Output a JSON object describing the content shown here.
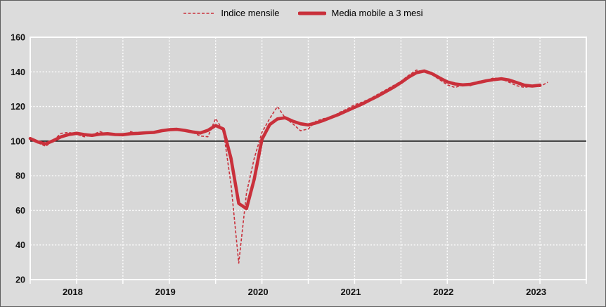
{
  "legend": {
    "series1_label": "Indice mensile",
    "series2_label": "Media mobile a 3 mesi"
  },
  "colors": {
    "line_red": "#c9303b",
    "plot_bg": "#d8d8d8",
    "outer_bg": "#dcdcdc",
    "gridline": "#ffffff",
    "baseline": "#000000",
    "text": "#111111"
  },
  "chart_data": {
    "type": "line",
    "title": "",
    "xlabel": "",
    "ylabel": "",
    "x_start": "2018-01",
    "x_total_months": 72,
    "x_tick_labels": [
      "2018",
      "2019",
      "2020",
      "2021",
      "2022",
      "2023"
    ],
    "y_ticks": [
      20,
      40,
      60,
      80,
      100,
      120,
      140,
      160
    ],
    "ylim": [
      20,
      160
    ],
    "baseline_value": 100,
    "grid": "on",
    "gridline_interval_months": 6,
    "legend_position": "top-center",
    "series": [
      {
        "name": "Indice mensile",
        "style": "dashed",
        "values": [
          101.5,
          99.0,
          97.0,
          100.5,
          104.5,
          105.0,
          104.0,
          102.5,
          103.5,
          105.5,
          104.0,
          103.5,
          103.0,
          105.5,
          104.0,
          105.0,
          105.5,
          106.5,
          107.0,
          106.5,
          106.0,
          105.0,
          103.0,
          102.5,
          113.0,
          106.0,
          75.0,
          29.5,
          70.0,
          90.0,
          105.0,
          113.0,
          120.0,
          113.5,
          110.0,
          106.0,
          107.0,
          111.5,
          113.0,
          113.5,
          116.5,
          118.5,
          121.0,
          122.5,
          124.5,
          127.0,
          129.5,
          132.0,
          134.5,
          138.0,
          141.0,
          140.0,
          138.5,
          135.5,
          132.5,
          131.0,
          132.5,
          132.0,
          134.5,
          135.0,
          136.5,
          136.0,
          134.0,
          132.0,
          131.0,
          132.0,
          131.5,
          134.0
        ]
      },
      {
        "name": "Media mobile a 3 mesi",
        "style": "solid-thick",
        "values": [
          101.5,
          99.5,
          98.4,
          100.3,
          102.5,
          103.8,
          104.5,
          103.8,
          103.3,
          104.0,
          104.3,
          103.8,
          103.7,
          104.3,
          104.5,
          104.8,
          105.0,
          106.0,
          106.6,
          106.8,
          106.2,
          105.3,
          104.7,
          106.2,
          109.0,
          107.0,
          90.0,
          64.0,
          61.0,
          78.0,
          101.0,
          109.5,
          112.8,
          113.5,
          111.5,
          110.0,
          109.3,
          110.5,
          112.0,
          113.8,
          115.5,
          117.5,
          119.5,
          121.5,
          123.8,
          126.0,
          128.5,
          131.0,
          133.8,
          137.0,
          139.5,
          140.5,
          139.0,
          136.5,
          134.2,
          133.0,
          132.5,
          132.8,
          133.8,
          134.8,
          135.5,
          136.0,
          135.3,
          133.8,
          132.3,
          131.8,
          132.3,
          null
        ]
      }
    ]
  }
}
